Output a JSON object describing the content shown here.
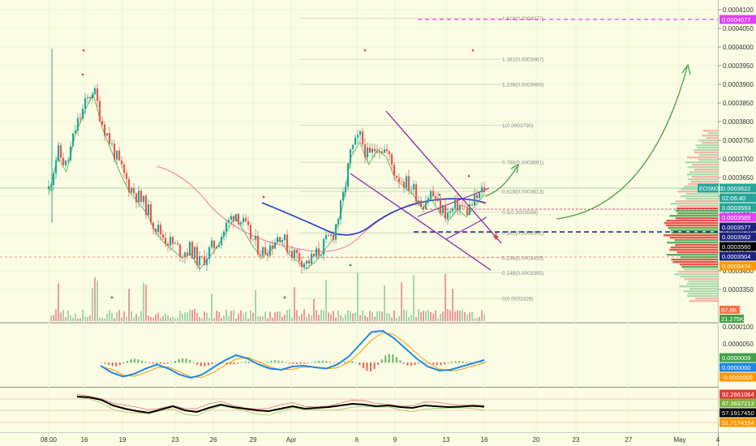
{
  "chart_data": [
    {
      "type": "candlestick",
      "symbol_label": "EOSM20",
      "price_axis_ticks": [
        "0.0004100",
        "0.0004050",
        "0.0004000",
        "0.0003950",
        "0.0003900",
        "0.0003850",
        "0.0003800",
        "0.0003750",
        "0.0003700",
        "0.0003650",
        "0.0003600",
        "0.0003550",
        "0.0003500",
        "0.0003450",
        "0.0003400",
        "0.0003350"
      ],
      "time_axis_ticks": [
        "08:00",
        "16",
        "19",
        "23",
        "26",
        "29",
        "Apr",
        "6",
        "9",
        "13",
        "16",
        "20",
        "23",
        "27",
        "May",
        "4"
      ],
      "ylim": [
        0.00033,
        0.00041
      ],
      "price_labels": [
        {
          "text": "0.0004077",
          "color": "#e040fb"
        },
        {
          "text": "0.0003622",
          "color": "#26a69a"
        },
        {
          "text": "02:06:40",
          "color": "#26a69a"
        },
        {
          "text": "0.0003593",
          "color": "#26a69a"
        },
        {
          "text": "0.0003589",
          "color": "#e040fb"
        },
        {
          "text": "0.0003577",
          "color": "#1a237e"
        },
        {
          "text": "0.0003562",
          "color": "#1a237e"
        },
        {
          "text": "0.0003560",
          "color": "#000000"
        },
        {
          "text": "0.0003504",
          "color": "#1a237e"
        },
        {
          "text": "0.0003474",
          "color": "#ff9800"
        }
      ],
      "volume_labels": [
        {
          "text": "67.8K",
          "color": "#ff7043"
        },
        {
          "text": "21.275K",
          "color": "#43a047"
        }
      ],
      "fib_levels": [
        {
          "label": "1.618(0.0004077)",
          "price": 0.0004077
        },
        {
          "label": "1.382(0.0003967)",
          "price": 0.0003967
        },
        {
          "label": "1.236(0.0003900)",
          "price": 0.00039
        },
        {
          "label": "1(0.0003790)",
          "price": 0.000379
        },
        {
          "label": "0.786(0.0003691)",
          "price": 0.0003691
        },
        {
          "label": "0.618(0.0003613)",
          "price": 0.0003613
        },
        {
          "label": "0.5(0.0003558)",
          "price": 0.0003558
        },
        {
          "label": "0.382(0.0003502)",
          "price": 0.0003502
        },
        {
          "label": "0.236(0.0003435)",
          "price": 0.0003435
        },
        {
          "label": "0.148(0.0003395)",
          "price": 0.0003395
        },
        {
          "label": "0(0.0003326)",
          "price": 0.0003326
        }
      ],
      "sample_closes": [
        0.000362,
        0.000372,
        0.000368,
        0.000378,
        0.000384,
        0.000389,
        0.00038,
        0.000374,
        0.000368,
        0.000363,
        0.00036,
        0.000357,
        0.000352,
        0.000349,
        0.000347,
        0.000345,
        0.000346,
        0.000342,
        0.000345,
        0.000348,
        0.000352,
        0.000356,
        0.000352,
        0.000348,
        0.000345,
        0.000347,
        0.00035,
        0.000346,
        0.000344,
        0.000342,
        0.000344,
        0.000347,
        0.00035,
        0.000358,
        0.000372,
        0.000376,
        0.00037,
        0.000374,
        0.000372,
        0.000366,
        0.000364,
        0.000362,
        0.000358,
        0.000361,
        0.000357,
        0.000355,
        0.000358,
        0.000356,
        0.000359,
        0.000362
      ]
    },
    {
      "type": "line",
      "name": "oscillator",
      "axis_ticks": [
        "0.0000100",
        "0.0000050"
      ],
      "labels": [
        {
          "text": "0.0000009",
          "color": "#43a047"
        },
        {
          "text": "0.0000000",
          "color": "#1e88e5"
        },
        {
          "text": "-0.0000009",
          "color": "#ff9800"
        }
      ],
      "macd": [
        -0.8,
        -2.5,
        -3.5,
        -2.8,
        -1.5,
        -0.5,
        -1.5,
        -3.0,
        -3.8,
        -3.0,
        -1.2,
        0.5,
        1.8,
        1.0,
        -0.5,
        -1.5,
        -1.8,
        -1.0,
        -0.8,
        -1.2,
        -1.5,
        -0.5,
        1.5,
        4.5,
        7.5,
        7.8,
        6.0,
        3.5,
        1.0,
        -1.0,
        -2.0,
        -1.8,
        -1.0,
        -0.2,
        0.6
      ]
    },
    {
      "type": "line",
      "name": "stochastic-like",
      "labels": [
        {
          "text": "92.2661064",
          "color": "#e53935"
        },
        {
          "text": "87.3837213",
          "color": "#7cb342"
        },
        {
          "text": "57.1917450",
          "color": "#000000"
        },
        {
          "text": "51.7174154",
          "color": "#ff9800"
        }
      ],
      "main": [
        82,
        80,
        74,
        60,
        52,
        46,
        42,
        50,
        58,
        48,
        44,
        54,
        62,
        56,
        52,
        48,
        46,
        52,
        58,
        52,
        54,
        56,
        60,
        64,
        62,
        58,
        60,
        56,
        54,
        60,
        58,
        56,
        57,
        59,
        57
      ]
    }
  ]
}
